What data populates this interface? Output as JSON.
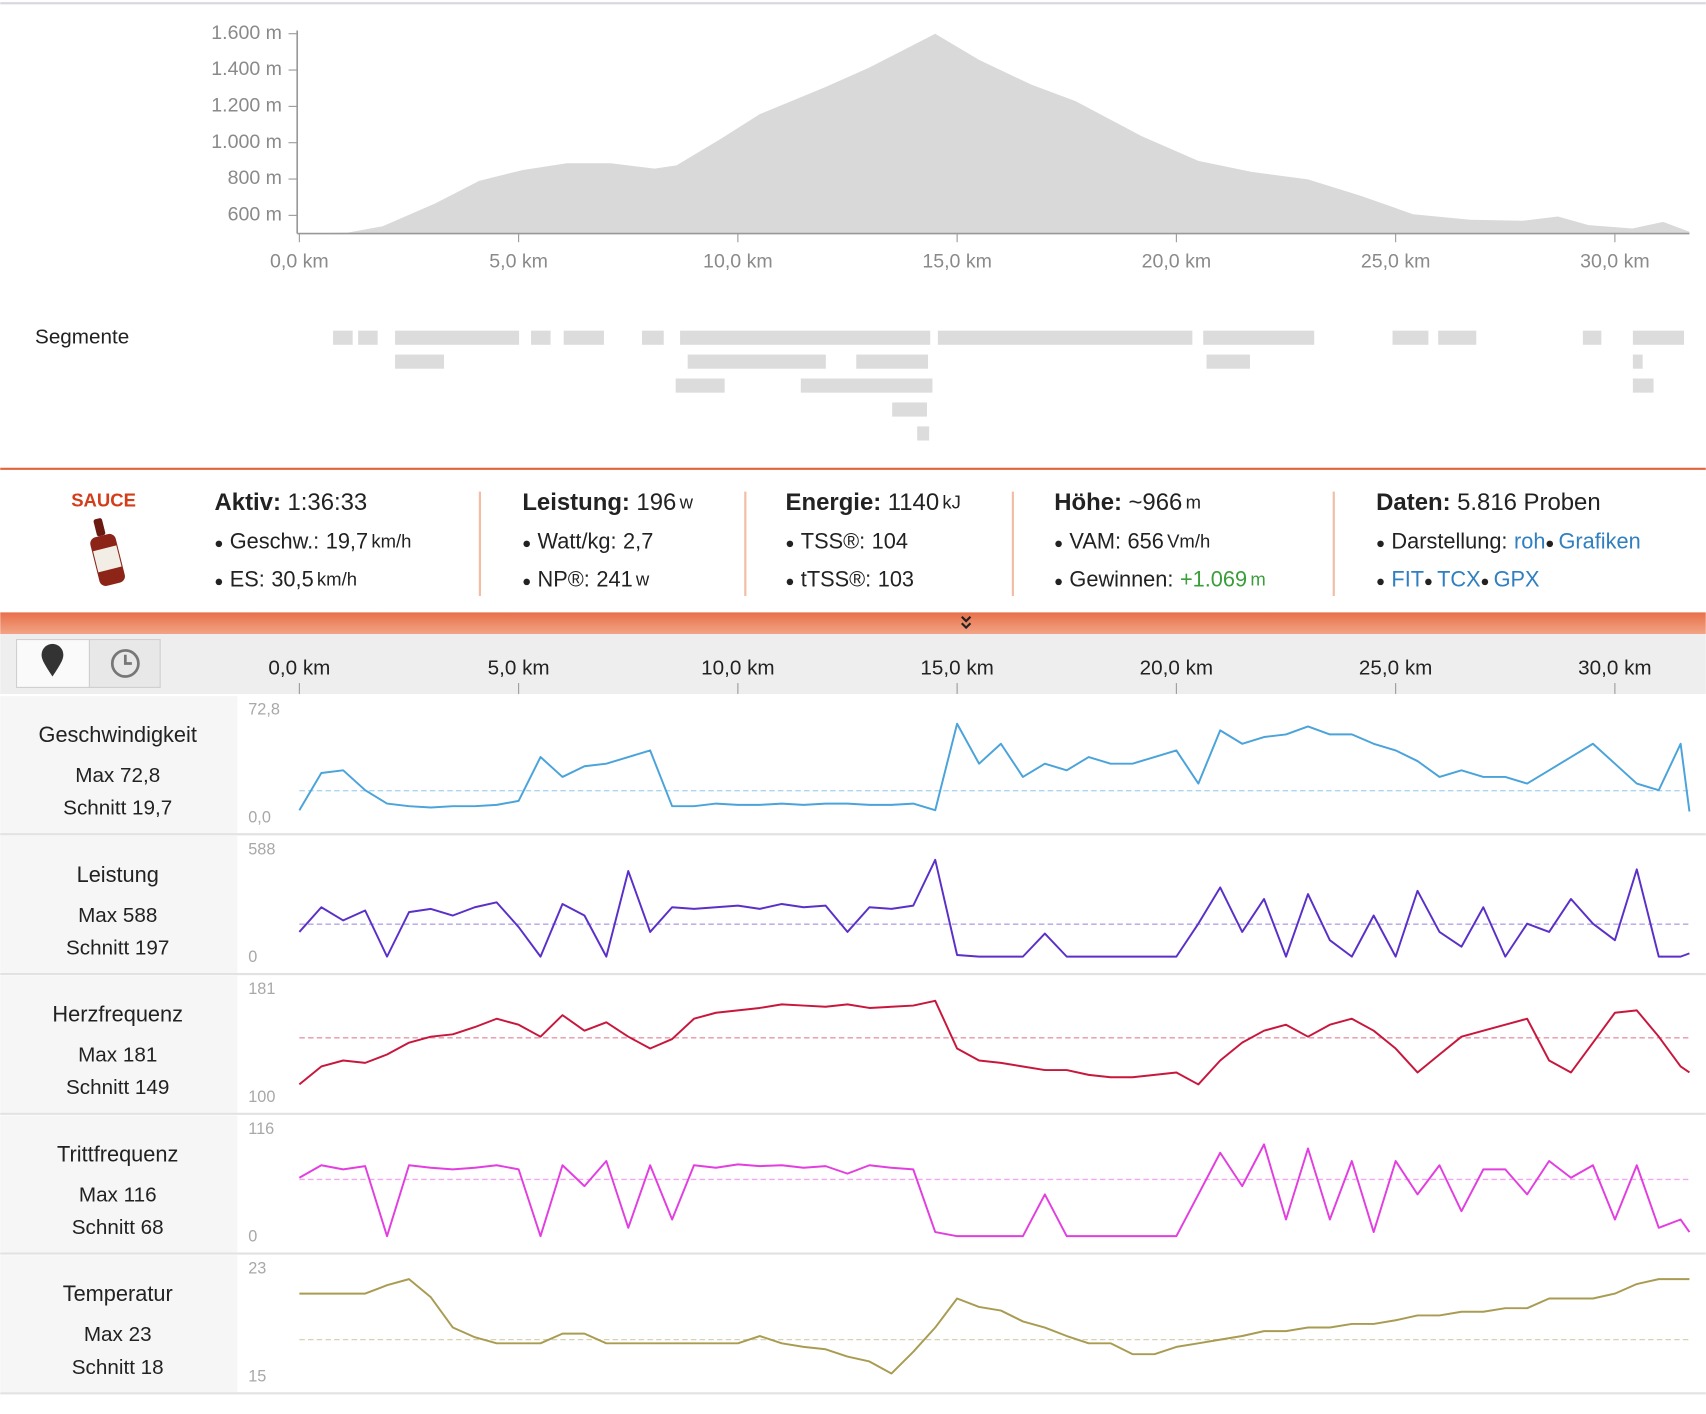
{
  "segments_label": "Segmente",
  "logo": "SAUCE",
  "stats": [
    {
      "head": {
        "label": "Aktiv:",
        "value": "1:36:33"
      },
      "rows": [
        {
          "label": "Geschw.:",
          "value": "19,7",
          "unit": "km/h"
        },
        {
          "label": "ES:",
          "value": "30,5",
          "unit": "km/h"
        }
      ]
    },
    {
      "head": {
        "label": "Leistung:",
        "value": "196",
        "unit": "w"
      },
      "rows": [
        {
          "label": "Watt/kg:",
          "value": "2,7"
        },
        {
          "label": "NP®:",
          "value": "241",
          "unit": "w"
        }
      ]
    },
    {
      "head": {
        "label": "Energie:",
        "value": "1140",
        "unit": "kJ"
      },
      "rows": [
        {
          "label": "TSS®:",
          "value": "104"
        },
        {
          "label": "tTSS®:",
          "value": "103"
        }
      ]
    },
    {
      "head": {
        "label": "Höhe:",
        "value": "~966",
        "unit": "m"
      },
      "rows": [
        {
          "label": "VAM:",
          "value": "656",
          "unit": "Vm/h"
        },
        {
          "label": "Gewinnen:",
          "value": "+1.069",
          "unit": "m",
          "color": "#3a9e3a"
        }
      ]
    },
    {
      "head": {
        "label": "Daten:",
        "value": "5.816 Proben"
      },
      "rows": [
        {
          "label": "Darstellung:",
          "links": [
            "roh",
            "Grafiken"
          ]
        },
        {
          "links": [
            "FIT",
            "TCX",
            "GPX"
          ]
        }
      ]
    }
  ],
  "chart_data": [
    {
      "type": "area",
      "color": "#d9d9d9",
      "x": [
        0,
        1.1,
        1.9,
        3.1,
        4.1,
        5.1,
        6.1,
        7.1,
        8.1,
        8.6,
        9.6,
        10.5,
        12.0,
        13.0,
        14.5,
        15.5,
        16.7,
        17.7,
        19.2,
        20.5,
        21.7,
        23.0,
        24.2,
        25.4,
        26.7,
        27.9,
        28.7,
        29.4,
        30.4,
        31.1,
        31.7
      ],
      "values": [
        500,
        505,
        540,
        666,
        790,
        850,
        887,
        887,
        857,
        875,
        1020,
        1157,
        1307,
        1414,
        1600,
        1456,
        1319,
        1229,
        1037,
        900,
        840,
        798,
        708,
        606,
        576,
        570,
        594,
        546,
        528,
        564,
        510
      ],
      "xlim": [
        0,
        31.7
      ],
      "xticks": [
        {
          "value": 0,
          "label": "0,0 km"
        },
        {
          "value": 5,
          "label": "5,0 km"
        },
        {
          "value": 10,
          "label": "10,0 km"
        },
        {
          "value": 15,
          "label": "15,0 km"
        },
        {
          "value": 20,
          "label": "20,0 km"
        },
        {
          "value": 25,
          "label": "25,0 km"
        },
        {
          "value": 30,
          "label": "30,0 km"
        }
      ],
      "ylim": [
        500,
        1600
      ],
      "yticks": [
        {
          "value": 600,
          "label": "600 m"
        },
        {
          "value": 800,
          "label": "800 m"
        },
        {
          "value": 1000,
          "label": "1.000 m"
        },
        {
          "value": 1200,
          "label": "1.200 m"
        },
        {
          "value": 1400,
          "label": "1.400 m"
        },
        {
          "value": 1600,
          "label": "1.600 m"
        }
      ]
    },
    {
      "type": "line",
      "x": [
        0,
        0.5,
        1,
        1.5,
        2,
        2.5,
        3,
        3.5,
        4,
        4.5,
        5,
        5.5,
        6,
        6.5,
        7,
        7.5,
        8,
        8.5,
        9,
        9.5,
        10,
        10.5,
        11,
        11.5,
        12,
        12.5,
        13,
        13.5,
        14,
        14.5,
        15,
        15.5,
        16,
        16.5,
        17,
        17.5,
        18,
        18.5,
        19,
        19.5,
        20,
        20.5,
        21,
        21.5,
        22,
        22.5,
        23,
        23.5,
        24,
        24.5,
        25,
        25.5,
        26,
        26.5,
        27,
        27.5,
        28,
        28.5,
        29,
        29.5,
        30,
        30.5,
        31,
        31.5,
        31.7
      ],
      "xlim": [
        0,
        31.7
      ],
      "xticks": [
        {
          "value": 0,
          "label": "0,0 km"
        },
        {
          "value": 5,
          "label": "5,0 km"
        },
        {
          "value": 10,
          "label": "10,0 km"
        },
        {
          "value": 15,
          "label": "15,0 km"
        },
        {
          "value": 20,
          "label": "20,0 km"
        },
        {
          "value": 25,
          "label": "25,0 km"
        },
        {
          "value": 30,
          "label": "30,0 km"
        }
      ],
      "series": [
        {
          "name": "Geschwindigkeit",
          "color": "#4aa3da",
          "max_label": "Max 72,8",
          "avg_label": "Schnitt 19,7",
          "avg": 19.7,
          "ylim": [
            0,
            72.8
          ],
          "yticks": [
            {
              "value": 72.8,
              "label": "72,8"
            },
            {
              "value": 0,
              "label": "0,0"
            }
          ],
          "values": [
            5,
            33,
            35,
            20,
            10,
            8,
            7,
            8,
            8,
            9,
            12,
            45,
            30,
            38,
            40,
            45,
            50,
            8,
            8,
            10,
            9,
            9,
            10,
            9,
            10,
            10,
            9,
            9,
            10,
            5,
            70,
            40,
            55,
            30,
            40,
            35,
            45,
            40,
            40,
            45,
            50,
            25,
            65,
            55,
            60,
            62,
            68,
            62,
            62,
            55,
            50,
            42,
            30,
            35,
            30,
            30,
            25,
            35,
            45,
            55,
            40,
            25,
            20,
            55,
            4
          ]
        },
        {
          "name": "Leistung",
          "color": "#5a30c8",
          "max_label": "Max 588",
          "avg_label": "Schnitt 197",
          "avg": 197,
          "ylim": [
            0,
            588
          ],
          "yticks": [
            588,
            0
          ],
          "values": [
            150,
            300,
            220,
            280,
            0,
            270,
            290,
            250,
            300,
            330,
            180,
            0,
            320,
            250,
            0,
            520,
            150,
            300,
            290,
            300,
            310,
            290,
            320,
            300,
            310,
            150,
            300,
            290,
            310,
            588,
            10,
            0,
            0,
            0,
            140,
            0,
            0,
            0,
            0,
            0,
            0,
            200,
            420,
            150,
            350,
            0,
            380,
            100,
            0,
            250,
            0,
            400,
            150,
            60,
            300,
            0,
            200,
            150,
            350,
            200,
            100,
            530,
            0,
            0,
            20
          ]
        },
        {
          "name": "Herzfrequenz",
          "color": "#c8173c",
          "max_label": "Max 181",
          "avg_label": "Schnitt 149",
          "avg": 149,
          "ylim": [
            100,
            181
          ],
          "yticks": [
            181,
            100
          ],
          "values": [
            110,
            125,
            130,
            128,
            135,
            145,
            150,
            152,
            158,
            165,
            160,
            150,
            168,
            155,
            162,
            150,
            140,
            148,
            165,
            170,
            172,
            174,
            177,
            176,
            175,
            177,
            174,
            175,
            176,
            180,
            140,
            130,
            128,
            125,
            122,
            122,
            118,
            116,
            116,
            118,
            120,
            110,
            130,
            145,
            155,
            160,
            150,
            160,
            165,
            155,
            140,
            120,
            135,
            150,
            155,
            160,
            165,
            130,
            120,
            145,
            170,
            172,
            150,
            125,
            120
          ]
        },
        {
          "name": "Trittfrequenz",
          "color": "#e23ee0",
          "max_label": "Max 116",
          "avg_label": "Schnitt 68",
          "avg": 68,
          "ylim": [
            0,
            116
          ],
          "yticks": [
            116,
            0
          ],
          "values": [
            70,
            85,
            80,
            84,
            0,
            85,
            82,
            80,
            82,
            85,
            80,
            0,
            85,
            60,
            90,
            10,
            85,
            20,
            85,
            82,
            86,
            84,
            85,
            82,
            84,
            75,
            85,
            82,
            80,
            5,
            0,
            0,
            0,
            0,
            50,
            0,
            0,
            0,
            0,
            0,
            0,
            50,
            100,
            60,
            110,
            20,
            105,
            20,
            90,
            5,
            90,
            50,
            85,
            30,
            80,
            80,
            50,
            90,
            70,
            85,
            20,
            85,
            10,
            20,
            5
          ]
        },
        {
          "name": "Temperatur",
          "color": "#a99c52",
          "max_label": "Max 23",
          "avg_label": "Schnitt 18",
          "avg": 18,
          "ylim": [
            15,
            23
          ],
          "yticks": [
            23,
            15
          ],
          "values": [
            21.8,
            21.8,
            21.8,
            21.8,
            22.5,
            23,
            21.5,
            19,
            18.2,
            17.7,
            17.7,
            17.7,
            18.5,
            18.5,
            17.7,
            17.7,
            17.7,
            17.7,
            17.7,
            17.7,
            17.7,
            18.3,
            17.7,
            17.4,
            17.2,
            16.6,
            16.2,
            15.2,
            17,
            19,
            21.4,
            20.7,
            20.4,
            19.5,
            19,
            18.3,
            17.7,
            17.7,
            16.8,
            16.8,
            17.4,
            17.7,
            18,
            18.3,
            18.7,
            18.7,
            19,
            19,
            19.3,
            19.3,
            19.6,
            20,
            20,
            20.3,
            20.3,
            20.6,
            20.6,
            21.4,
            21.4,
            21.4,
            21.8,
            22.6,
            23,
            23,
            23
          ]
        }
      ]
    }
  ]
}
